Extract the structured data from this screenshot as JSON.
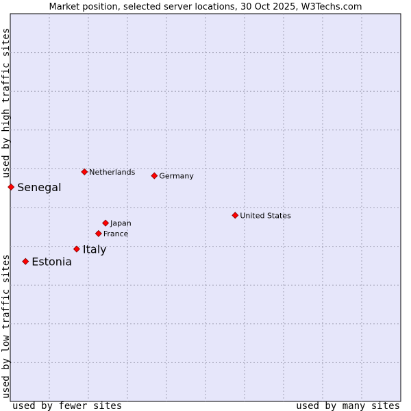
{
  "chart_data": {
    "type": "scatter",
    "title": "Market position, selected server locations, 30 Oct 2025, W3Techs.com",
    "xlabel_left": "used by fewer sites",
    "xlabel_right": "used by many sites",
    "ylabel_bottom": "used by low traffic sites",
    "ylabel_top": "used by high traffic sites",
    "xlim": [
      0,
      100
    ],
    "ylim": [
      0,
      100
    ],
    "grid": true,
    "colors": {
      "plot_bg": "#e6e6fa",
      "grid": "#a0a0b4",
      "marker": "#ff0000",
      "marker_edge": "#800000"
    },
    "points": [
      {
        "label": "Senegal",
        "x": 0.2,
        "y": 55.3,
        "emphasis": true
      },
      {
        "label": "Netherlands",
        "x": 19.0,
        "y": 59.2,
        "emphasis": false
      },
      {
        "label": "Germany",
        "x": 36.9,
        "y": 58.2,
        "emphasis": false
      },
      {
        "label": "United States",
        "x": 57.6,
        "y": 48.0,
        "emphasis": false
      },
      {
        "label": "Japan",
        "x": 24.4,
        "y": 46.0,
        "emphasis": false
      },
      {
        "label": "France",
        "x": 22.6,
        "y": 43.3,
        "emphasis": false
      },
      {
        "label": "Italy",
        "x": 17.0,
        "y": 39.3,
        "emphasis": true
      },
      {
        "label": "Estonia",
        "x": 3.9,
        "y": 36.1,
        "emphasis": true
      }
    ]
  }
}
